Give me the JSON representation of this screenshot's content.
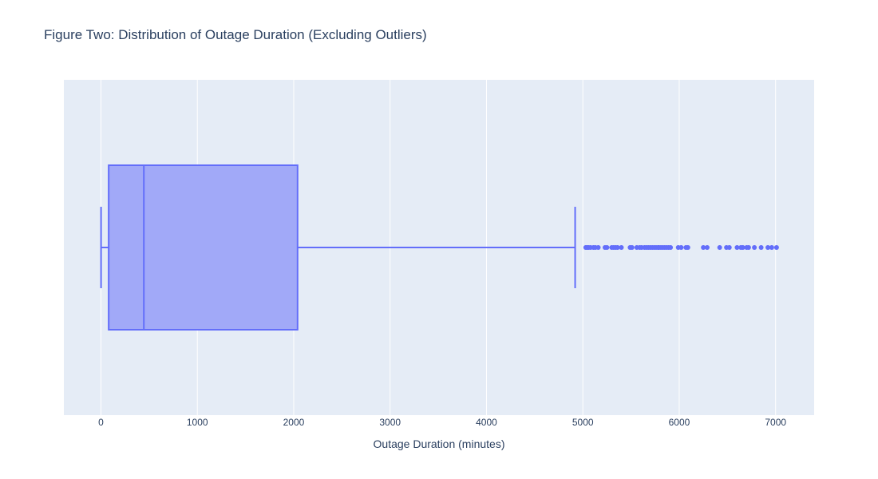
{
  "chart_data": {
    "type": "box",
    "title": "Figure Two: Distribution of Outage Duration (Excluding Outliers)",
    "xlabel": "Outage Duration (minutes)",
    "ylabel": "",
    "orientation": "horizontal",
    "xlim": [
      -385,
      7400
    ],
    "xticks": [
      0,
      1000,
      2000,
      3000,
      4000,
      5000,
      6000,
      7000
    ],
    "xtick_labels": [
      "0",
      "1000",
      "2000",
      "3000",
      "4000",
      "5000",
      "6000",
      "7000"
    ],
    "grid": true,
    "series": [
      {
        "min": 1,
        "q1": 80,
        "median": 445,
        "q3": 2040,
        "whisker_high": 4920,
        "outliers": [
          5030,
          5045,
          5060,
          5080,
          5110,
          5130,
          5160,
          5230,
          5250,
          5300,
          5320,
          5340,
          5360,
          5400,
          5490,
          5510,
          5560,
          5590,
          5610,
          5640,
          5660,
          5680,
          5700,
          5720,
          5740,
          5760,
          5780,
          5790,
          5810,
          5830,
          5850,
          5870,
          5890,
          5910,
          5990,
          6020,
          6070,
          6090,
          6250,
          6290,
          6420,
          6490,
          6520,
          6600,
          6640,
          6660,
          6700,
          6720,
          6780,
          6850,
          6920,
          6960,
          7010
        ]
      }
    ],
    "colors": {
      "line": "#636efa",
      "fill": "#a1a9f8",
      "plot_bg": "#e5ecf6",
      "grid": "#ffffff",
      "text": "#2a3f5f"
    }
  }
}
